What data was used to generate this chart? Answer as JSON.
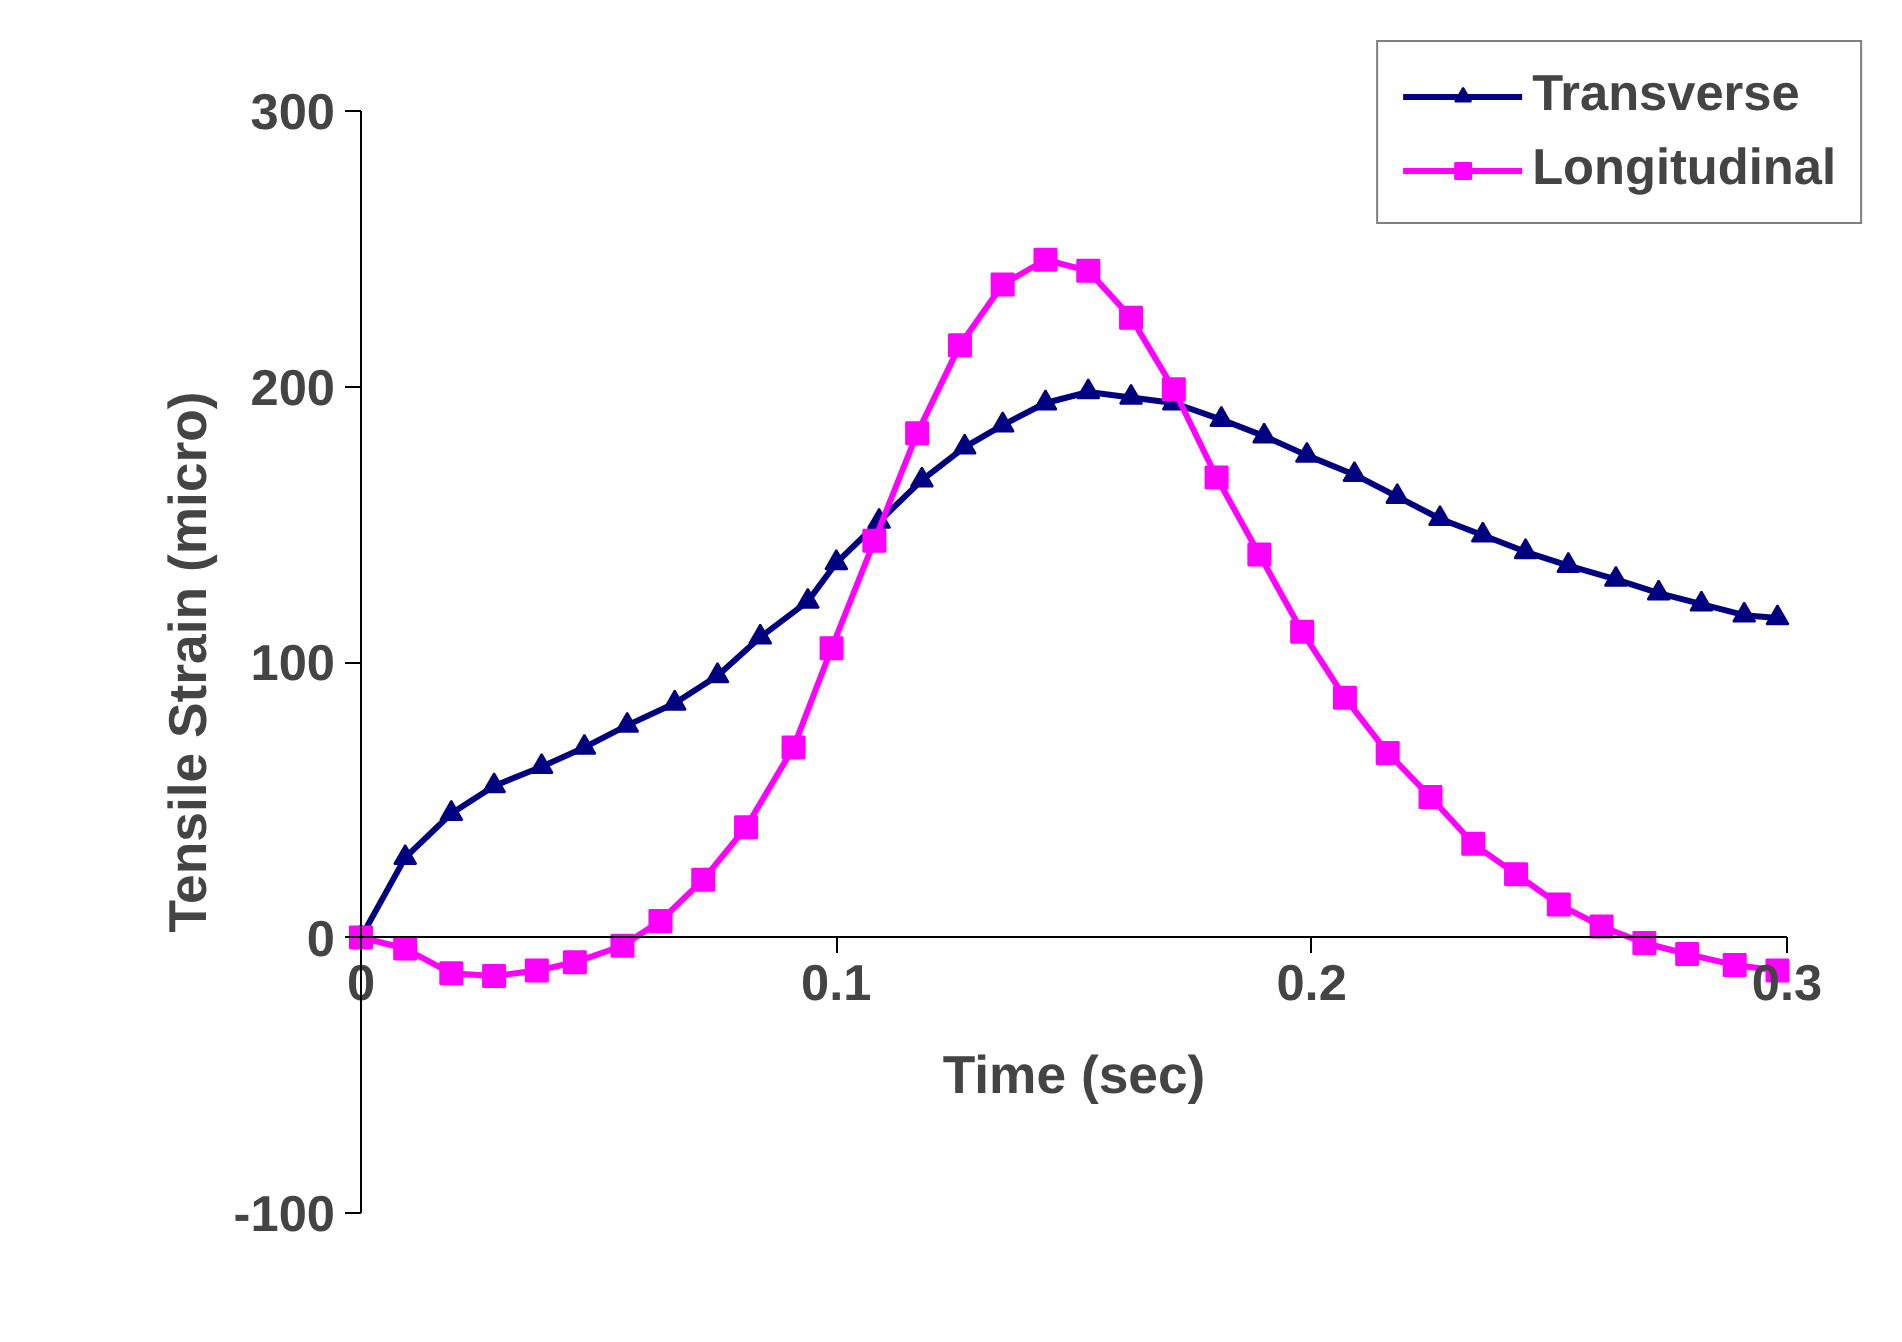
{
  "chart_data": {
    "type": "line",
    "xlabel": "Time (sec)",
    "ylabel": "Tensile Strain (micro)",
    "xlim": [
      0,
      0.3
    ],
    "ylim": [
      -100,
      300
    ],
    "xticks": [
      0,
      0.1,
      0.2,
      0.3
    ],
    "yticks": [
      -100,
      0,
      100,
      200,
      300
    ],
    "grid": false,
    "legend": "top right",
    "series": [
      {
        "name": "Transverse",
        "color": "#000080",
        "marker": "triangle",
        "x": [
          0,
          0.0093,
          0.019,
          0.028,
          0.038,
          0.047,
          0.056,
          0.066,
          0.075,
          0.084,
          0.094,
          0.1,
          0.109,
          0.118,
          0.127,
          0.135,
          0.144,
          0.153,
          0.162,
          0.171,
          0.181,
          0.19,
          0.199,
          0.209,
          0.218,
          0.227,
          0.236,
          0.245,
          0.254,
          0.264,
          0.273,
          0.282,
          0.291,
          0.298
        ],
        "values": [
          0,
          29,
          45,
          55,
          62,
          69,
          77,
          85,
          95,
          109,
          122,
          136,
          151,
          166,
          178,
          186,
          194,
          198,
          196,
          194,
          188,
          182,
          175,
          168,
          160,
          152,
          146,
          140,
          135,
          130,
          125,
          121,
          117,
          116
        ]
      },
      {
        "name": "Longitudinal",
        "color": "#ff00ff",
        "marker": "square",
        "x": [
          0,
          0.0093,
          0.019,
          0.028,
          0.037,
          0.045,
          0.055,
          0.063,
          0.072,
          0.081,
          0.091,
          0.099,
          0.108,
          0.117,
          0.126,
          0.135,
          0.144,
          0.153,
          0.162,
          0.171,
          0.18,
          0.189,
          0.198,
          0.207,
          0.216,
          0.225,
          0.234,
          0.243,
          0.252,
          0.261,
          0.27,
          0.279,
          0.289,
          0.298
        ],
        "values": [
          0,
          -4,
          -13,
          -14,
          -12,
          -9,
          -3,
          6,
          21,
          40,
          69,
          105,
          144,
          183,
          215,
          237,
          246,
          242,
          225,
          199,
          167,
          139,
          111,
          87,
          67,
          51,
          34,
          23,
          12,
          4,
          -2,
          -6,
          -10,
          -12
        ]
      }
    ]
  }
}
